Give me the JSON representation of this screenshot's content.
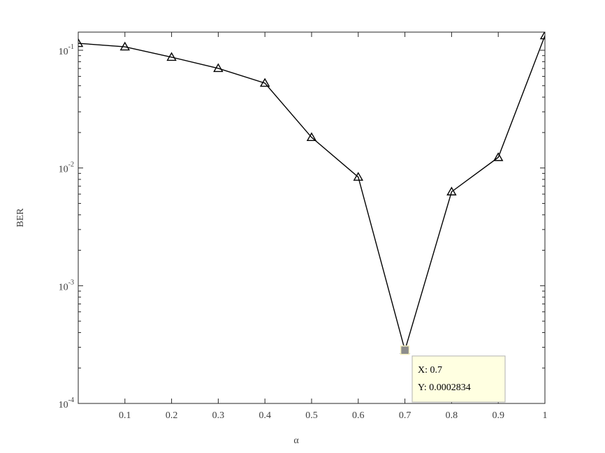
{
  "chart_data": {
    "type": "line",
    "x_label": "α",
    "y_label": "BER",
    "x": [
      0,
      0.1,
      0.2,
      0.3,
      0.4,
      0.5,
      0.6,
      0.7,
      0.8,
      0.9,
      1
    ],
    "series": [
      {
        "name": "BER",
        "color": "#000000",
        "marker": "triangle",
        "values": [
          0.1146,
          0.107,
          0.0873,
          0.0702,
          0.0526,
          0.0182,
          0.00837,
          0.0002834,
          0.00628,
          0.0123,
          0.133
        ]
      }
    ],
    "xlim": [
      0,
      1
    ],
    "xticks": [
      0.1,
      0.2,
      0.3,
      0.4,
      0.5,
      0.6,
      0.7,
      0.8,
      0.9,
      1
    ],
    "ylim": [
      0.0001,
      0.1426
    ],
    "yscale": "log",
    "yticks": [
      {
        "value": 0.1,
        "label": "10-1"
      },
      {
        "value": 0.01,
        "label": "10-2"
      },
      {
        "value": 0.001,
        "label": "10-3"
      },
      {
        "value": 0.0001,
        "label": "10-4"
      }
    ],
    "grid": false,
    "datatip": {
      "index": 7,
      "x_text": "X: 0.7",
      "y_text": "Y: 0.0002834"
    }
  }
}
